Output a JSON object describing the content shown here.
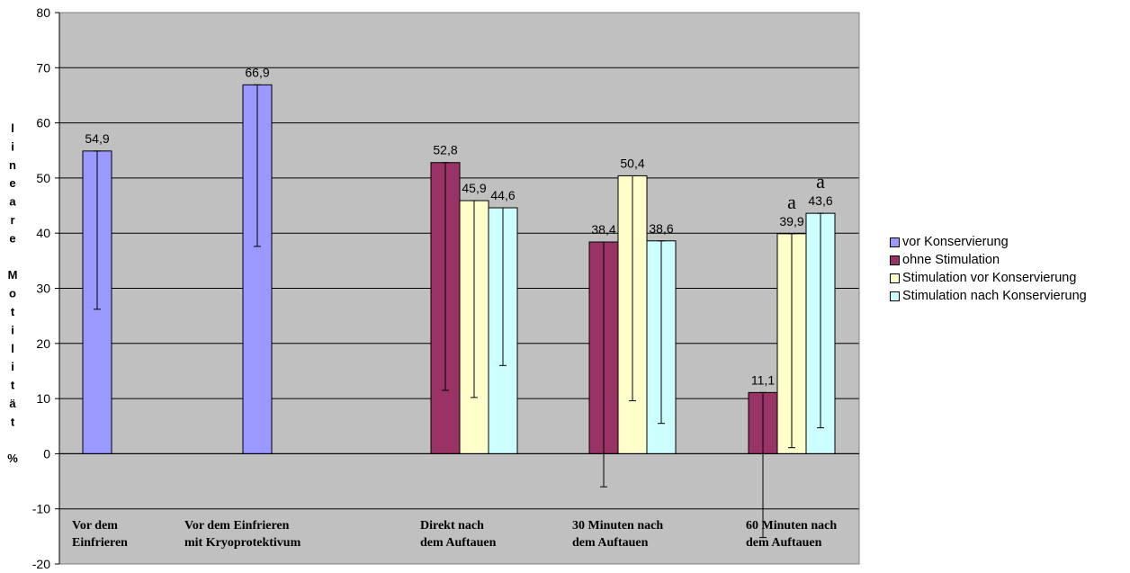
{
  "chart_data": {
    "type": "bar",
    "ylabel_chars": [
      "l",
      "i",
      "n",
      "e",
      "a",
      "r",
      "e",
      "",
      "M",
      "o",
      "t",
      "i",
      "l",
      "i",
      "t",
      "ä",
      "t",
      "",
      "%"
    ],
    "ylim": [
      -20,
      80
    ],
    "yticks": [
      -20,
      -10,
      0,
      10,
      20,
      30,
      40,
      50,
      60,
      70,
      80
    ],
    "grid": true,
    "legend_position": "right",
    "categories": [
      {
        "lines": [
          "Vor dem",
          "Einfrieren"
        ]
      },
      {
        "lines": [
          "Vor dem Einfrieren",
          " mit Kryoprotektivum"
        ]
      },
      {
        "lines": [
          "Direkt nach",
          "dem Auftauen"
        ]
      },
      {
        "lines": [
          "30  Minuten nach",
          "dem Auftauen"
        ]
      },
      {
        "lines": [
          "60 Minuten nach",
          "dem Auftauen"
        ]
      }
    ],
    "series": [
      {
        "name": "vor Konservierung",
        "color": "#9999ff"
      },
      {
        "name": "ohne Stimulation",
        "color": "#993366"
      },
      {
        "name": "Stimulation vor Konservierung",
        "color": "#ffffcc"
      },
      {
        "name": "Stimulation nach Konservierung",
        "color": "#ccffff"
      }
    ],
    "bars": [
      {
        "category": 0,
        "series": 0,
        "value": 54.9,
        "label": "54,9",
        "err_low": 26.2,
        "err_high": 54.9
      },
      {
        "category": 1,
        "series": 0,
        "value": 66.9,
        "label": "66,9",
        "err_low": 37.6,
        "err_high": 66.9
      },
      {
        "category": 2,
        "series": 1,
        "value": 52.8,
        "label": "52,8",
        "err_low": 11.5,
        "err_high": 52.8
      },
      {
        "category": 2,
        "series": 2,
        "value": 45.9,
        "label": "45,9",
        "err_low": 10.2,
        "err_high": 45.9
      },
      {
        "category": 2,
        "series": 3,
        "value": 44.6,
        "label": "44,6",
        "err_low": 16.0,
        "err_high": 44.6
      },
      {
        "category": 3,
        "series": 1,
        "value": 38.4,
        "label": "38,4",
        "err_low": -6.0,
        "err_high": 38.4
      },
      {
        "category": 3,
        "series": 2,
        "value": 50.4,
        "label": "50,4",
        "err_low": 9.6,
        "err_high": 50.4
      },
      {
        "category": 3,
        "series": 3,
        "value": 38.6,
        "label": "38,6",
        "err_low": 5.5,
        "err_high": 38.6
      },
      {
        "category": 4,
        "series": 1,
        "value": 11.1,
        "label": "11,1",
        "err_low": -15.2,
        "err_high": 11.1
      },
      {
        "category": 4,
        "series": 2,
        "value": 39.9,
        "label": "39,9",
        "err_low": 1.1,
        "err_high": 39.9,
        "annotation": "a"
      },
      {
        "category": 4,
        "series": 3,
        "value": 43.6,
        "label": "43,6",
        "err_low": 4.7,
        "err_high": 43.6,
        "annotation": "a"
      }
    ]
  }
}
